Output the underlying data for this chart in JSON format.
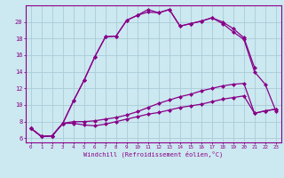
{
  "xlabel": "Windchill (Refroidissement éolien,°C)",
  "bg_color": "#cce8f0",
  "grid_color": "#aaccd8",
  "line_color": "#880088",
  "xlim": [
    -0.5,
    23.5
  ],
  "ylim": [
    5.5,
    22.0
  ],
  "xticks": [
    0,
    1,
    2,
    3,
    4,
    5,
    6,
    7,
    8,
    9,
    10,
    11,
    12,
    13,
    14,
    15,
    16,
    17,
    18,
    19,
    20,
    21,
    22,
    23
  ],
  "yticks": [
    6,
    8,
    10,
    12,
    14,
    16,
    18,
    20
  ],
  "curve1_x": [
    0,
    1,
    2,
    3,
    4,
    5,
    6,
    7,
    8,
    9,
    10,
    11,
    12,
    13,
    14,
    15,
    16,
    17,
    18,
    19,
    20,
    21
  ],
  "curve1_y": [
    7.2,
    6.2,
    6.3,
    7.8,
    10.5,
    13.0,
    15.8,
    18.2,
    18.3,
    20.2,
    20.8,
    21.5,
    21.1,
    21.5,
    19.5,
    19.8,
    20.1,
    20.5,
    20.0,
    19.2,
    18.1,
    14.5
  ],
  "curve2_x": [
    0,
    1,
    2,
    3,
    4,
    5,
    6,
    7,
    8,
    9,
    10,
    11,
    12,
    13,
    14,
    15,
    16,
    17,
    18,
    19,
    20,
    21,
    22,
    23
  ],
  "curve2_y": [
    7.2,
    6.2,
    6.3,
    7.8,
    10.5,
    13.0,
    15.8,
    18.2,
    18.3,
    20.2,
    20.8,
    21.2,
    21.1,
    21.5,
    19.5,
    19.8,
    20.1,
    20.5,
    19.8,
    18.8,
    17.9,
    14.0,
    12.5,
    9.3
  ],
  "curve3_x": [
    0,
    1,
    2,
    3,
    4,
    5,
    6,
    7,
    8,
    9,
    10,
    11,
    12,
    13,
    14,
    15,
    16,
    17,
    18,
    19,
    20,
    21,
    22,
    23
  ],
  "curve3_y": [
    7.2,
    6.2,
    6.3,
    7.8,
    8.0,
    8.0,
    8.1,
    8.3,
    8.5,
    8.8,
    9.2,
    9.7,
    10.2,
    10.6,
    11.0,
    11.3,
    11.7,
    12.0,
    12.3,
    12.5,
    12.6,
    9.0,
    9.3,
    9.5
  ],
  "curve4_x": [
    0,
    1,
    2,
    3,
    4,
    5,
    6,
    7,
    8,
    9,
    10,
    11,
    12,
    13,
    14,
    15,
    16,
    17,
    18,
    19,
    20,
    21,
    22,
    23
  ],
  "curve4_y": [
    7.2,
    6.2,
    6.3,
    7.8,
    7.8,
    7.6,
    7.5,
    7.7,
    8.0,
    8.3,
    8.6,
    8.9,
    9.1,
    9.4,
    9.7,
    9.9,
    10.1,
    10.4,
    10.7,
    10.9,
    11.1,
    9.0,
    9.3,
    9.5
  ]
}
